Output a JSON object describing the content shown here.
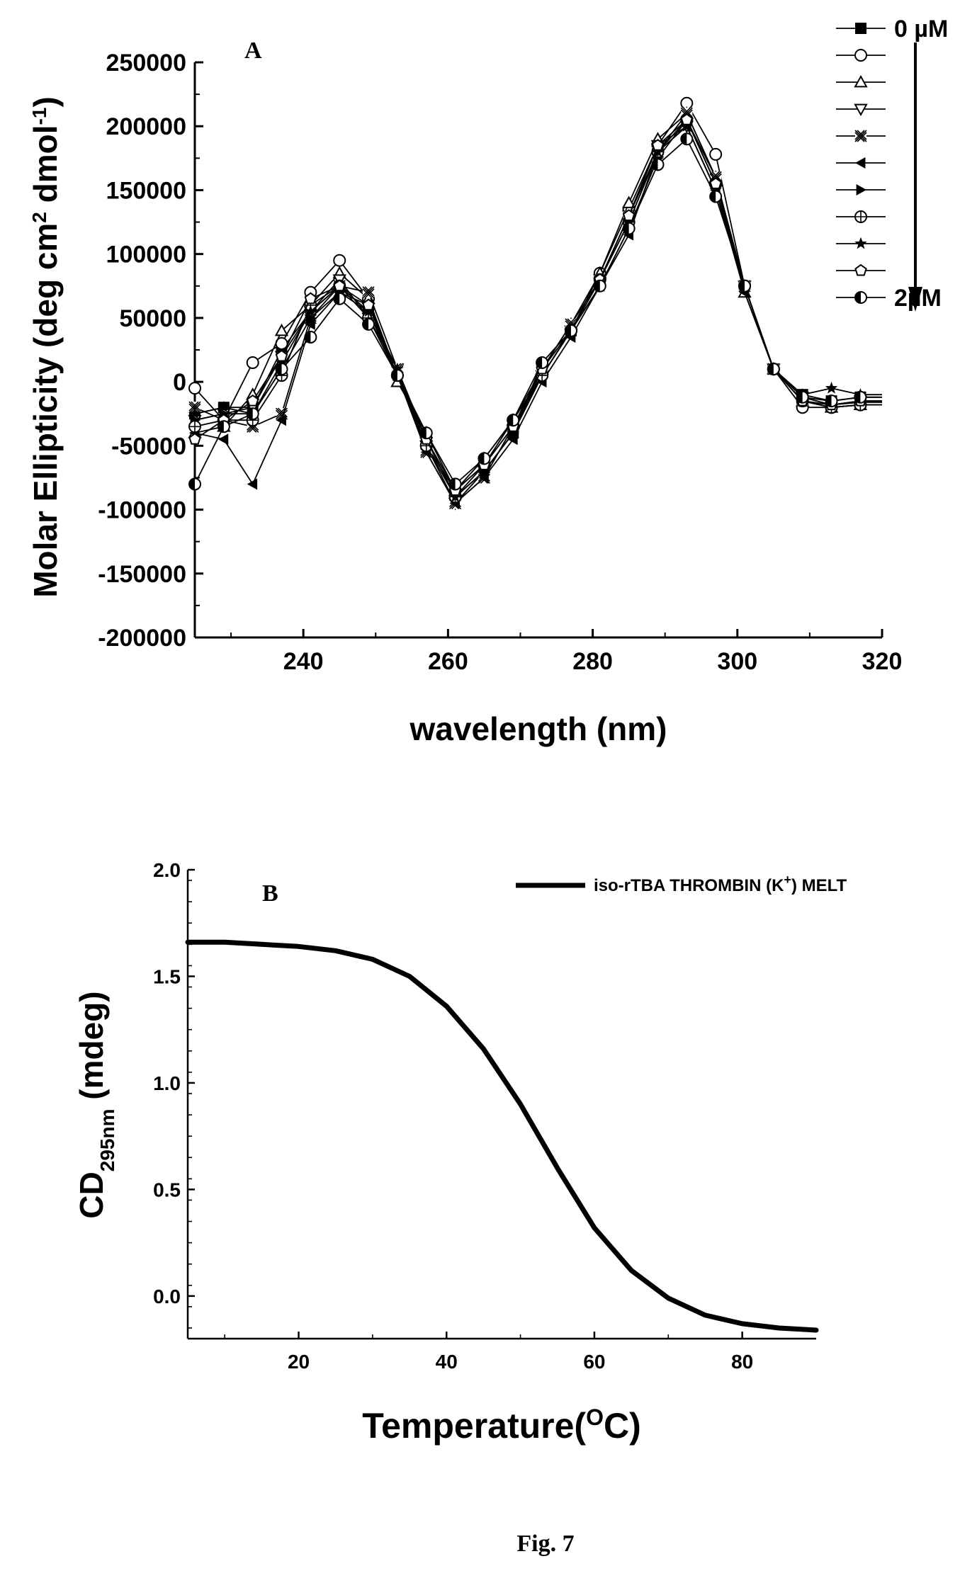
{
  "caption": "Fig. 7",
  "chart_data": [
    {
      "panel": "A",
      "type": "line",
      "ylabel_parts": [
        "Molar Ellipticity (deg cm",
        "2",
        " dmol",
        "-1",
        ")"
      ],
      "xlabel": "wavelength (nm)",
      "xlim": [
        225,
        320
      ],
      "ylim": [
        -200000,
        250000
      ],
      "x_ticks": [
        240,
        260,
        280,
        300,
        320
      ],
      "y_ticks": [
        250000,
        200000,
        150000,
        100000,
        50000,
        0,
        -50000,
        -100000,
        -150000,
        -200000
      ],
      "legend": {
        "placement": "top-right",
        "start_label": "0 µM",
        "end_label": "2µM",
        "arrow": "down"
      },
      "markers": [
        "filled-square",
        "open-circle",
        "open-triangle-up",
        "open-triangle-down",
        "crossed-x",
        "filled-left-triangle",
        "filled-right-triangle",
        "crossed-circle",
        "filled-star",
        "open-pentagon",
        "half-filled-circle"
      ],
      "x": [
        225,
        229,
        233,
        237,
        241,
        245,
        249,
        253,
        257,
        261,
        265,
        269,
        273,
        277,
        281,
        285,
        289,
        293,
        297,
        301,
        305,
        309,
        313,
        317,
        320
      ],
      "series": [
        {
          "values": [
            -25000,
            -20000,
            -20000,
            25000,
            55000,
            75000,
            55000,
            10000,
            -45000,
            -90000,
            -70000,
            -40000,
            10000,
            40000,
            80000,
            130000,
            180000,
            205000,
            160000,
            75000,
            10000,
            -10000,
            -15000,
            -12000,
            -12000
          ]
        },
        {
          "values": [
            -5000,
            -30000,
            15000,
            30000,
            70000,
            95000,
            65000,
            5000,
            -50000,
            -85000,
            -65000,
            -30000,
            5000,
            40000,
            85000,
            135000,
            185000,
            218000,
            178000,
            75000,
            10000,
            -20000,
            -20000,
            -18000,
            -18000
          ]
        },
        {
          "values": [
            -40000,
            -35000,
            -10000,
            40000,
            60000,
            85000,
            65000,
            0,
            -40000,
            -85000,
            -60000,
            -30000,
            10000,
            45000,
            85000,
            140000,
            190000,
            210000,
            160000,
            70000,
            10000,
            -15000,
            -20000,
            -18000,
            -18000
          ]
        },
        {
          "values": [
            -30000,
            -25000,
            -20000,
            20000,
            55000,
            80000,
            50000,
            10000,
            -50000,
            -95000,
            -70000,
            -40000,
            5000,
            40000,
            80000,
            130000,
            185000,
            200000,
            150000,
            75000,
            10000,
            -12000,
            -18000,
            -15000,
            -15000
          ]
        },
        {
          "values": [
            -20000,
            -30000,
            -35000,
            -25000,
            50000,
            75000,
            70000,
            10000,
            -55000,
            -95000,
            -75000,
            -35000,
            10000,
            45000,
            80000,
            130000,
            180000,
            210000,
            160000,
            75000,
            10000,
            -15000,
            -18000,
            -16000,
            -16000
          ]
        },
        {
          "values": [
            -40000,
            -45000,
            -80000,
            -30000,
            45000,
            70000,
            60000,
            5000,
            -55000,
            -95000,
            -75000,
            -45000,
            0,
            35000,
            75000,
            115000,
            180000,
            200000,
            150000,
            70000,
            10000,
            -15000,
            -20000,
            -18000,
            -18000
          ]
        },
        {
          "values": [
            -30000,
            -25000,
            -25000,
            10000,
            50000,
            70000,
            55000,
            5000,
            -45000,
            -90000,
            -70000,
            -40000,
            5000,
            40000,
            75000,
            120000,
            175000,
            205000,
            155000,
            75000,
            10000,
            -12000,
            -18000,
            -15000,
            -15000
          ]
        },
        {
          "values": [
            -35000,
            -30000,
            -30000,
            5000,
            60000,
            75000,
            50000,
            5000,
            -50000,
            -90000,
            -65000,
            -35000,
            5000,
            40000,
            80000,
            125000,
            180000,
            205000,
            155000,
            75000,
            10000,
            -15000,
            -20000,
            -18000,
            -18000
          ]
        },
        {
          "values": [
            -25000,
            -20000,
            -25000,
            15000,
            55000,
            75000,
            55000,
            10000,
            -45000,
            -90000,
            -70000,
            -40000,
            15000,
            40000,
            80000,
            125000,
            180000,
            200000,
            150000,
            75000,
            10000,
            -10000,
            -5000,
            -10000,
            -10000
          ]
        },
        {
          "values": [
            -45000,
            -30000,
            -15000,
            20000,
            65000,
            75000,
            60000,
            5000,
            -45000,
            -85000,
            -65000,
            -35000,
            10000,
            40000,
            80000,
            130000,
            185000,
            205000,
            155000,
            75000,
            10000,
            -15000,
            -18000,
            -15000,
            -15000
          ]
        },
        {
          "values": [
            -80000,
            -35000,
            -25000,
            10000,
            35000,
            65000,
            45000,
            5000,
            -40000,
            -80000,
            -60000,
            -30000,
            15000,
            40000,
            75000,
            120000,
            170000,
            190000,
            145000,
            75000,
            10000,
            -12000,
            -15000,
            -12000,
            -12000
          ]
        }
      ]
    },
    {
      "panel": "B",
      "type": "line",
      "ylabel": "CD",
      "ylabel_sub": "295nm",
      "ylabel_rest": " (mdeg)",
      "xlabel": "Temperature(",
      "xlabel_sup": "O",
      "xlabel_end": "C)",
      "xlim": [
        5,
        90
      ],
      "ylim": [
        -0.2,
        2.0
      ],
      "x_ticks": [
        20,
        40,
        60,
        80
      ],
      "y_ticks": [
        2.0,
        1.5,
        1.0,
        0.5,
        0.0
      ],
      "legend": {
        "placement": "top-right",
        "label": "iso-rTBA THROMBIN (K",
        "label_sup": "+",
        "label_end": ")  MELT"
      },
      "x": [
        5,
        10,
        15,
        20,
        25,
        30,
        35,
        40,
        45,
        50,
        55,
        60,
        65,
        70,
        75,
        80,
        85,
        90
      ],
      "series": [
        {
          "values": [
            1.66,
            1.66,
            1.65,
            1.64,
            1.62,
            1.58,
            1.5,
            1.36,
            1.16,
            0.9,
            0.6,
            0.32,
            0.12,
            -0.01,
            -0.09,
            -0.13,
            -0.15,
            -0.16
          ]
        }
      ]
    }
  ]
}
